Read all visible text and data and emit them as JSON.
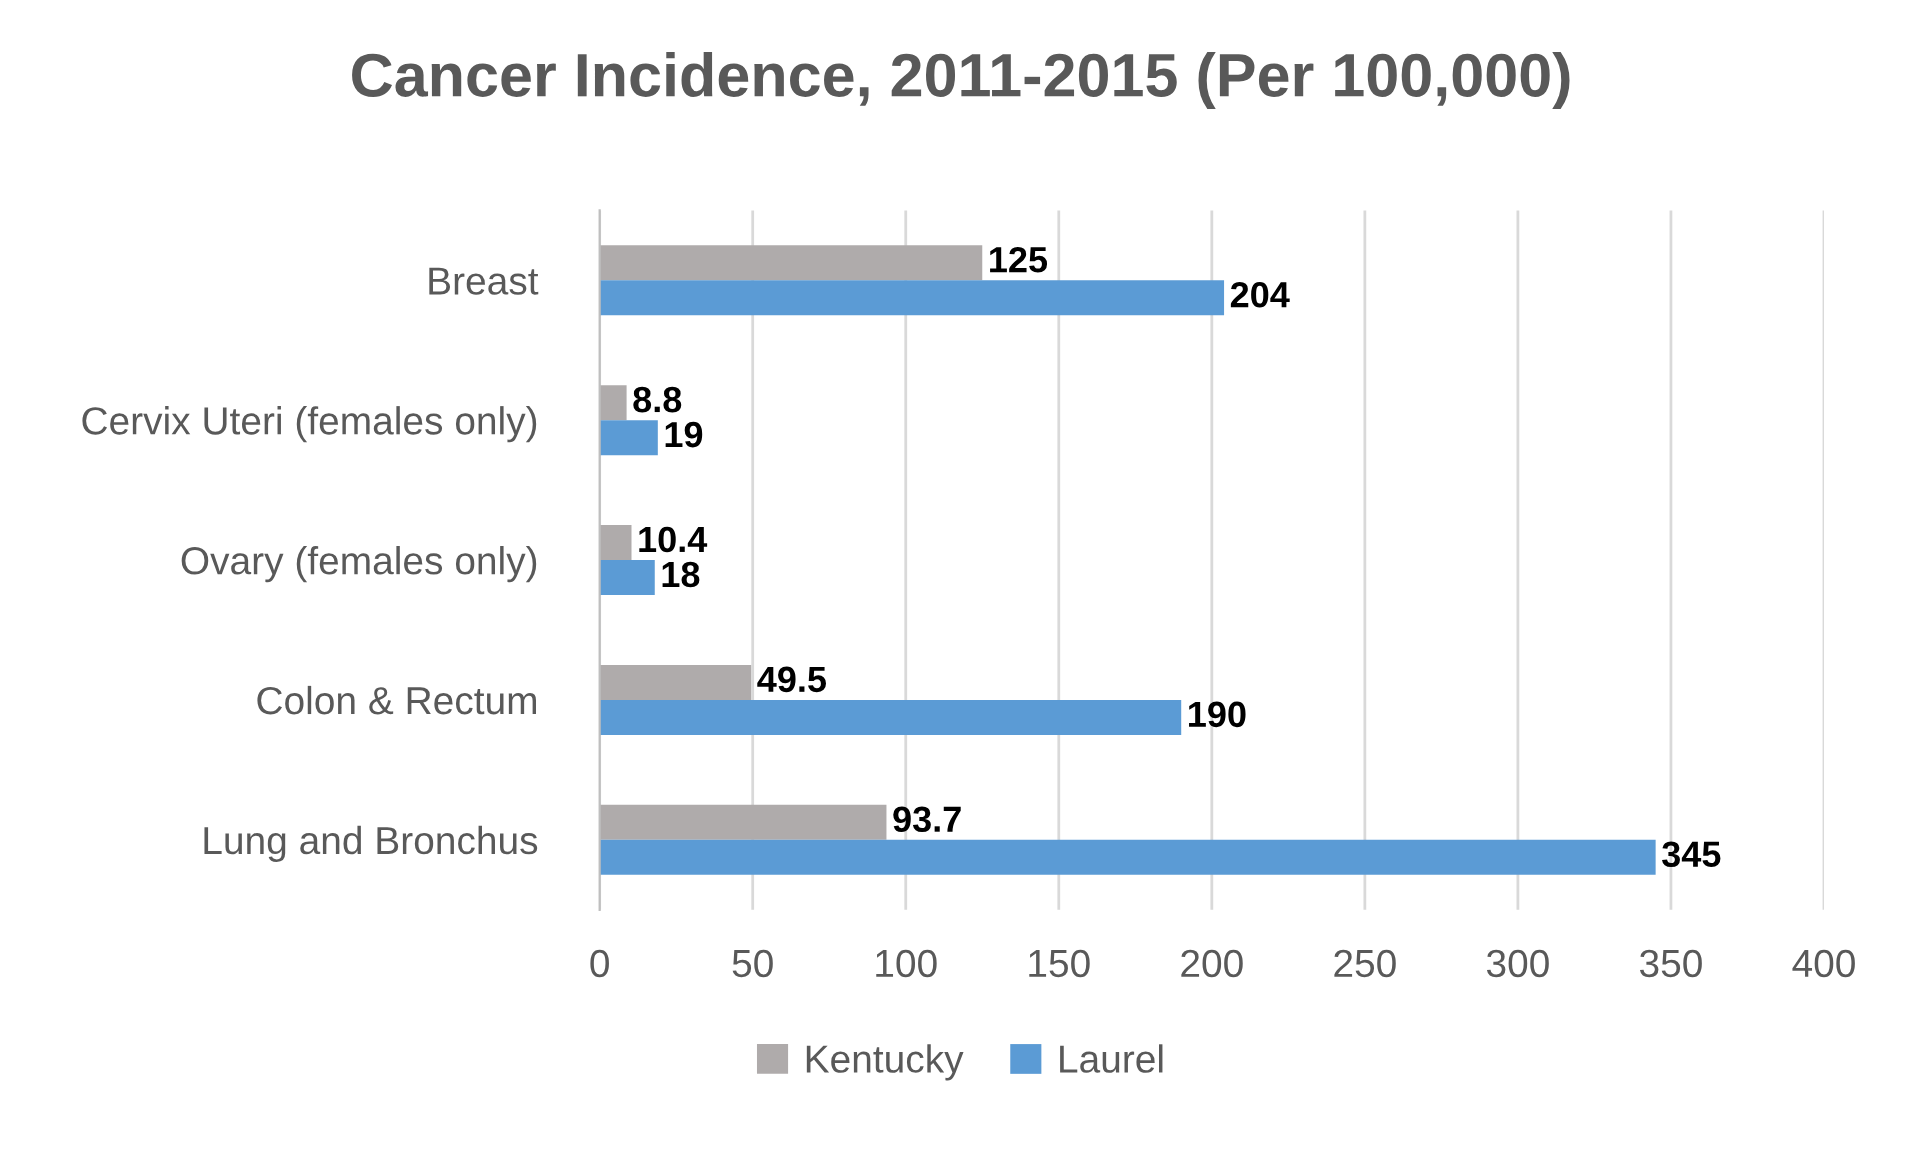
{
  "chart_data": {
    "type": "bar",
    "orientation": "horizontal",
    "title": "Cancer Incidence, 2011-2015 (Per 100,000)",
    "categories": [
      "Breast",
      "Cervix Uteri (females only)",
      "Ovary (females only)",
      "Colon & Rectum",
      "Lung and Bronchus"
    ],
    "series": [
      {
        "name": "Kentucky",
        "color": "#afabab",
        "values": [
          125,
          8.8,
          10.4,
          49.5,
          93.7
        ]
      },
      {
        "name": "Laurel",
        "color": "#5b9bd5",
        "values": [
          204,
          19,
          18,
          190,
          345
        ]
      }
    ],
    "xlim": [
      0,
      400
    ],
    "xticks": [
      0,
      50,
      100,
      150,
      200,
      250,
      300,
      350,
      400
    ],
    "grid": "x",
    "legend": "bottom",
    "data_labels": true
  }
}
